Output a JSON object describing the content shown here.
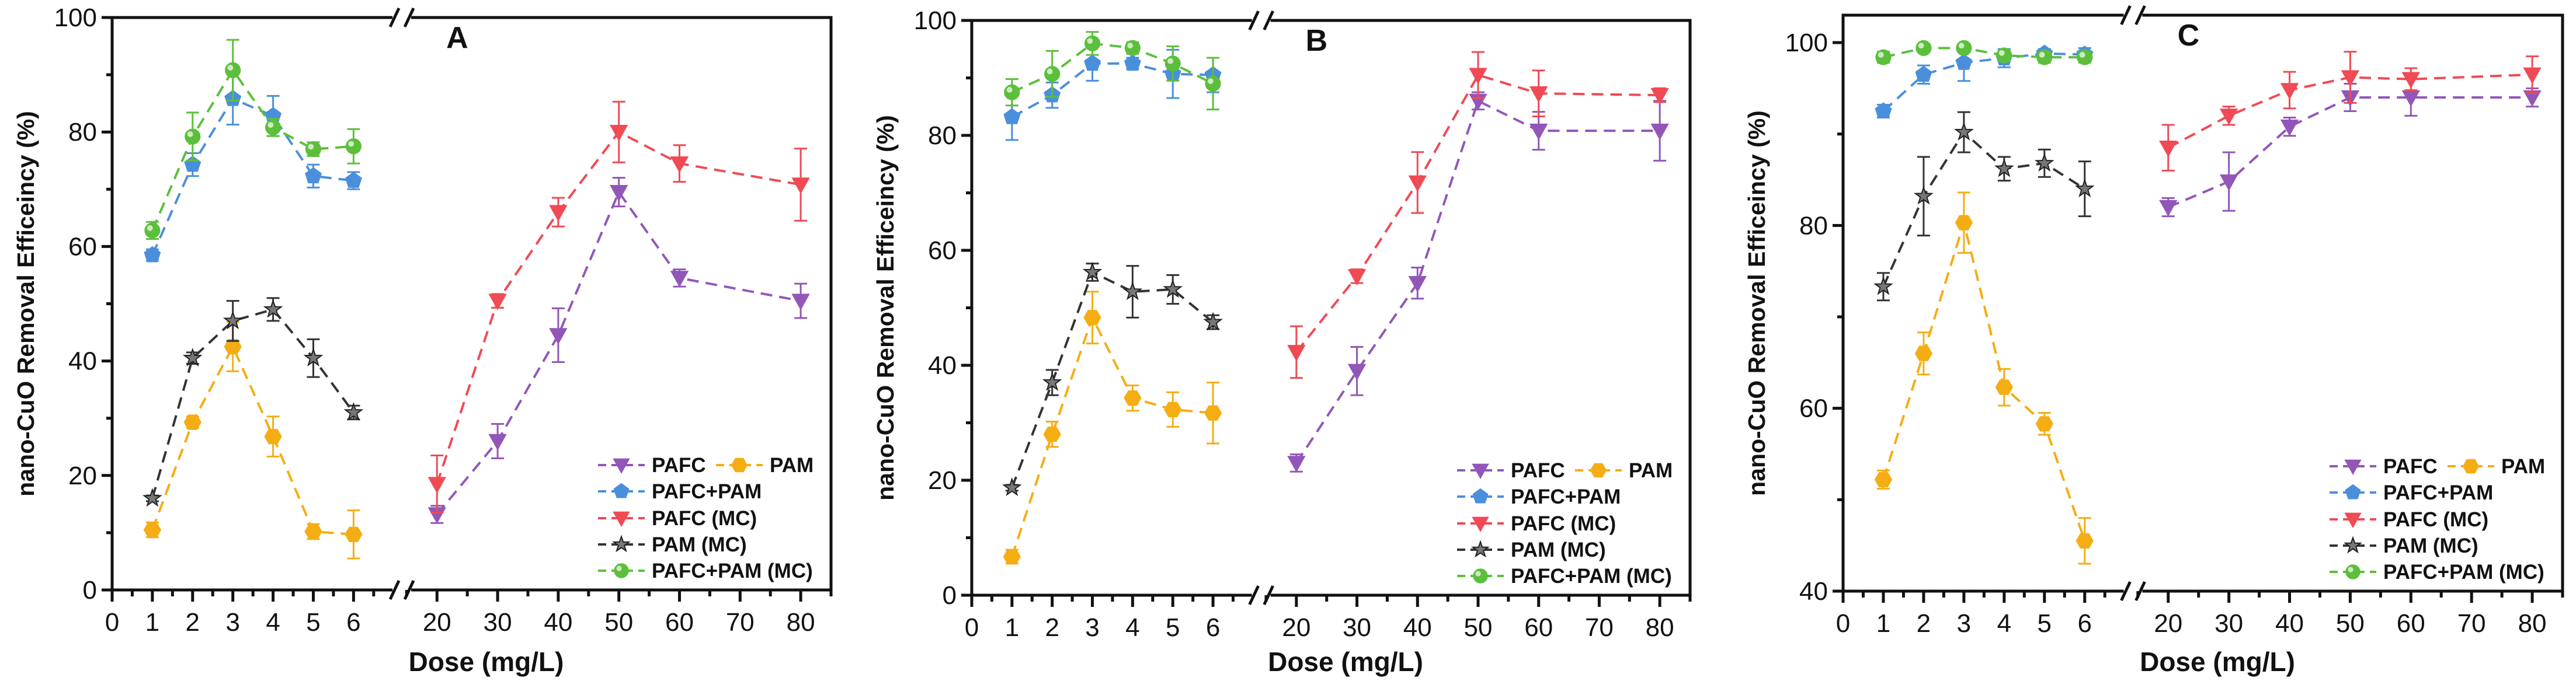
{
  "series_styles": {
    "PAFC": {
      "color": "#9256b8",
      "marker": "triangle-down"
    },
    "PAM": {
      "color": "#f5ad14",
      "marker": "hexagon"
    },
    "PAFC+PAM": {
      "color": "#4a8fdc",
      "marker": "pentagon"
    },
    "PAFC (MC)": {
      "color": "#f04a55",
      "marker": "triangle-down"
    },
    "PAM (MC)": {
      "color": "#333333",
      "marker": "star"
    },
    "PAFC+PAM (MC)": {
      "color": "#5cbf3c",
      "marker": "sphere"
    }
  },
  "chart_data": [
    {
      "type": "line",
      "title": "A",
      "xlabel": "Dose (mg/L)",
      "ylabel": "nano-CuO Removal Efficeincy (%)",
      "ylim": [
        0,
        100
      ],
      "yticks": [
        0,
        20,
        40,
        60,
        80,
        100
      ],
      "xbreak": {
        "left_range": [
          0,
          7.2
        ],
        "right_range": [
          14.2,
          85
        ]
      },
      "xticks_left": [
        0,
        1,
        2,
        3,
        4,
        5,
        6
      ],
      "xticks_right": [
        20,
        30,
        40,
        50,
        60,
        70,
        80
      ],
      "legend": {
        "placement": "bottom-right",
        "entries": [
          "PAFC",
          "PAM",
          "PAFC+PAM",
          "PAFC (MC)",
          "PAM (MC)",
          "PAFC+PAM (MC)"
        ]
      },
      "series": [
        {
          "name": "PAFC",
          "x": [
            20,
            30,
            40,
            50,
            60,
            80
          ],
          "y": [
            13.2,
            26,
            44.5,
            69.5,
            54.5,
            50.5
          ],
          "err": [
            1.5,
            3,
            4.7,
            2.5,
            1.5,
            3
          ]
        },
        {
          "name": "PAM",
          "x": [
            1,
            2,
            3,
            4,
            5,
            6
          ],
          "y": [
            10.5,
            29.3,
            42.5,
            26.8,
            10.2,
            9.7
          ],
          "err": [
            1.3,
            1,
            4.3,
            3.5,
            1.3,
            4.2
          ]
        },
        {
          "name": "PAFC+PAM",
          "x": [
            1,
            2,
            3,
            4,
            5,
            6
          ],
          "y": [
            58.5,
            74.3,
            85.8,
            82.8,
            72.3,
            71.5
          ],
          "err": [
            1,
            2,
            4.5,
            3.5,
            2,
            1.5
          ]
        },
        {
          "name": "PAFC (MC)",
          "x": [
            20,
            30,
            40,
            50,
            60,
            80
          ],
          "y": [
            18.5,
            50.5,
            66,
            80,
            74.5,
            70.8
          ],
          "err": [
            5,
            1.2,
            2.5,
            5.3,
            3.2,
            6.3
          ]
        },
        {
          "name": "PAM (MC)",
          "x": [
            1,
            2,
            3,
            4,
            5,
            6
          ],
          "y": [
            16,
            40.5,
            47,
            49,
            40.5,
            31
          ],
          "err": [
            0.5,
            1,
            3.5,
            2,
            3.3,
            1.2
          ]
        },
        {
          "name": "PAFC+PAM (MC)",
          "x": [
            1,
            2,
            3,
            4,
            5,
            6
          ],
          "y": [
            62.8,
            79.2,
            90.8,
            80.8,
            77,
            77.5
          ],
          "err": [
            1.5,
            4.2,
            5.3,
            1.5,
            1.2,
            3
          ]
        }
      ]
    },
    {
      "type": "line",
      "title": "B",
      "xlabel": "Dose (mg/L)",
      "ylabel": "nano-CuO Removal Efficeincy (%)",
      "ylim": [
        0,
        100
      ],
      "yticks": [
        0,
        20,
        40,
        60,
        80,
        100
      ],
      "xbreak": {
        "left_range": [
          0,
          7.2
        ],
        "right_range": [
          14.2,
          85
        ]
      },
      "xticks_left": [
        0,
        1,
        2,
        3,
        4,
        5,
        6
      ],
      "xticks_right": [
        20,
        30,
        40,
        50,
        60,
        70,
        80
      ],
      "legend": {
        "placement": "bottom-right",
        "entries": [
          "PAFC",
          "PAM",
          "PAFC+PAM",
          "PAFC (MC)",
          "PAM (MC)",
          "PAFC+PAM (MC)"
        ]
      },
      "series": [
        {
          "name": "PAFC",
          "x": [
            20,
            30,
            40,
            50,
            60,
            80
          ],
          "y": [
            23,
            39,
            54.3,
            86,
            80.8,
            80.8
          ],
          "err": [
            1.5,
            4.2,
            2.7,
            1.5,
            3.3,
            5.2
          ]
        },
        {
          "name": "PAM",
          "x": [
            1,
            2,
            3,
            4,
            5,
            6
          ],
          "y": [
            6.7,
            28,
            48.3,
            34.3,
            32.3,
            31.7
          ],
          "err": [
            1.2,
            2.2,
            4.5,
            2.2,
            3,
            5.3
          ]
        },
        {
          "name": "PAFC+PAM",
          "x": [
            1,
            2,
            3,
            4,
            5,
            6
          ],
          "y": [
            83.2,
            87,
            92.5,
            92.5,
            90.7,
            90.5
          ],
          "err": [
            4,
            2.2,
            3,
            1,
            4.2,
            3
          ]
        },
        {
          "name": "PAFC (MC)",
          "x": [
            20,
            30,
            40,
            50,
            60,
            80
          ],
          "y": [
            42.3,
            55.5,
            71.8,
            90.5,
            87.3,
            87
          ],
          "err": [
            4.5,
            1.2,
            5.3,
            4,
            4,
            1.2
          ]
        },
        {
          "name": "PAM (MC)",
          "x": [
            1,
            2,
            3,
            4,
            5,
            6
          ],
          "y": [
            18.7,
            37,
            56.2,
            52.8,
            53.2,
            47.5
          ],
          "err": [
            0.5,
            2.2,
            1.5,
            4.5,
            2.5,
            1.2
          ]
        },
        {
          "name": "PAFC+PAM (MC)",
          "x": [
            1,
            2,
            3,
            4,
            5,
            6
          ],
          "y": [
            87.5,
            90.7,
            96,
            95.2,
            92.5,
            89
          ],
          "err": [
            2.3,
            4,
            2,
            1,
            3,
            4.5
          ]
        }
      ]
    },
    {
      "type": "line",
      "title": "C",
      "xlabel": "Dose (mg/L)",
      "ylabel": "nano-CuO Removal Efficeincy (%)",
      "ylim": [
        40,
        103
      ],
      "yticks": [
        40,
        60,
        80,
        100
      ],
      "xbreak": {
        "left_range": [
          0,
          7.2
        ],
        "right_range": [
          14.2,
          85
        ]
      },
      "xticks_left": [
        0,
        1,
        2,
        3,
        4,
        5,
        6
      ],
      "xticks_right": [
        20,
        30,
        40,
        50,
        60,
        70,
        80
      ],
      "legend": {
        "placement": "bottom-right",
        "entries": [
          "PAFC",
          "PAM",
          "PAFC+PAM",
          "PAFC (MC)",
          "PAM (MC)",
          "PAFC+PAM (MC)"
        ]
      },
      "series": [
        {
          "name": "PAFC",
          "x": [
            20,
            30,
            40,
            50,
            60,
            80
          ],
          "y": [
            82,
            84.8,
            90.8,
            94,
            94,
            94
          ],
          "err": [
            1,
            3.2,
            1,
            1.5,
            2,
            1
          ]
        },
        {
          "name": "PAM",
          "x": [
            1,
            2,
            3,
            4,
            5,
            6
          ],
          "y": [
            52.2,
            66,
            80.3,
            62.3,
            58.3,
            45.5
          ],
          "err": [
            1,
            2.3,
            3.3,
            2,
            1.2,
            2.5
          ]
        },
        {
          "name": "PAFC+PAM",
          "x": [
            1,
            2,
            3,
            4,
            5,
            6
          ],
          "y": [
            92.5,
            96.5,
            97.8,
            98.3,
            98.8,
            98.7
          ],
          "err": [
            0.7,
            1,
            2,
            1,
            0.5,
            0.7
          ]
        },
        {
          "name": "PAFC (MC)",
          "x": [
            20,
            30,
            40,
            50,
            60,
            80
          ],
          "y": [
            88.5,
            92,
            94.8,
            96.2,
            96,
            96.5
          ],
          "err": [
            2.5,
            1,
            2,
            2.8,
            1.2,
            2
          ]
        },
        {
          "name": "PAM (MC)",
          "x": [
            1,
            2,
            3,
            4,
            5,
            6
          ],
          "y": [
            73.3,
            83.2,
            90.2,
            86.2,
            86.8,
            84
          ],
          "err": [
            1.5,
            4.3,
            2.2,
            1.3,
            1.5,
            3
          ]
        },
        {
          "name": "PAFC+PAM (MC)",
          "x": [
            1,
            2,
            3,
            4,
            5,
            6
          ],
          "y": [
            98.4,
            99.4,
            99.4,
            98.6,
            98.4,
            98.4
          ],
          "err": [
            0.6,
            0.4,
            0.4,
            0.6,
            0.6,
            0.6
          ]
        }
      ]
    }
  ]
}
